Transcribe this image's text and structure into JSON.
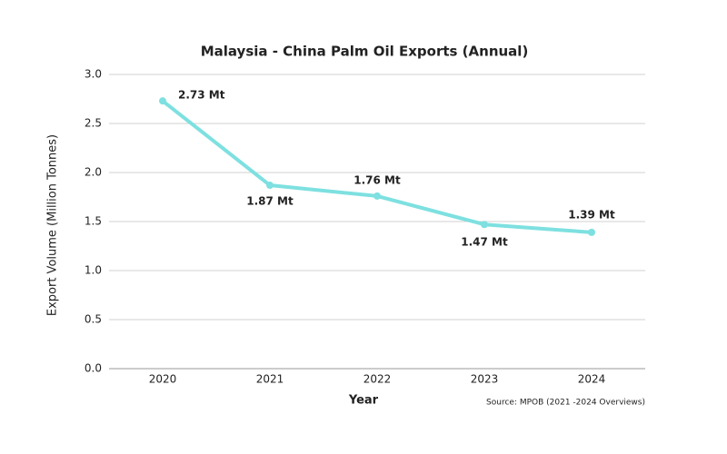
{
  "chart_data": {
    "type": "line",
    "title": "Malaysia - China Palm Oil Exports (Annual)",
    "x_label": "Year",
    "y_label": "Export Volume (Million Tonnes)",
    "source": "Source: MPOB (2021 -2024 Overviews)",
    "categories": [
      "2020",
      "2021",
      "2022",
      "2023",
      "2024"
    ],
    "values": [
      2.73,
      1.87,
      1.76,
      1.47,
      1.39
    ],
    "value_labels": [
      "2.73 Mt",
      "1.87 Mt",
      "1.76 Mt",
      "1.47 Mt",
      "1.39 Mt"
    ],
    "color": "#7ee0e0",
    "ylim": [
      0,
      3
    ],
    "yticks": [
      {
        "value": 0,
        "label": "0.0"
      },
      0.5,
      {
        "value": 1,
        "label": "1.0"
      },
      1.5,
      {
        "value": 2,
        "label": "2.0"
      },
      2.5,
      {
        "value": 3,
        "label": "3.0"
      }
    ],
    "grid": true
  }
}
